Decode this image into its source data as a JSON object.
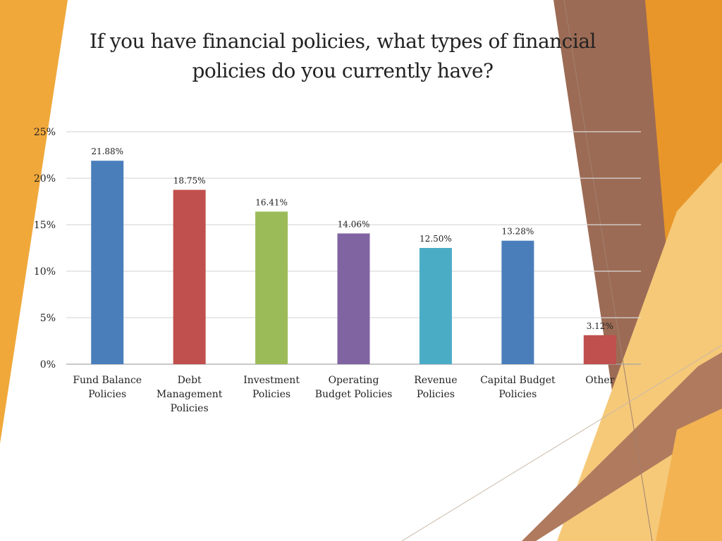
{
  "slide": {
    "title": "If you have financial policies, what types of financial policies do you currently have?"
  },
  "decor": {
    "colors": [
      "#F0A83A",
      "#E8962A",
      "#9C6B55",
      "#B07A5E",
      "#F6C979",
      "#F3B353"
    ]
  },
  "chart_data": {
    "type": "bar",
    "title": "If you have financial policies, what types of financial policies do you currently have?",
    "categories": [
      [
        "Fund Balance",
        "Policies"
      ],
      [
        "Debt",
        "Management",
        "Policies"
      ],
      [
        "Investment",
        "Policies"
      ],
      [
        "Operating",
        "Budget Policies"
      ],
      [
        "Revenue",
        "Policies"
      ],
      [
        "Capital Budget",
        "Policies"
      ],
      [
        "Other"
      ]
    ],
    "values": [
      21.88,
      18.75,
      16.41,
      14.06,
      12.5,
      13.28,
      3.12
    ],
    "value_labels": [
      "21.88%",
      "18.75%",
      "16.41%",
      "14.06%",
      "12.50%",
      "13.28%",
      "3.12%"
    ],
    "colors": [
      "#4A7EBB",
      "#C0504D",
      "#9BBB59",
      "#8064A2",
      "#4BACC6",
      "#4A7EBB",
      "#C0504D"
    ],
    "ylim": [
      0,
      25
    ],
    "yticks": [
      0,
      5,
      10,
      15,
      20,
      25
    ],
    "ytick_labels": [
      "0%",
      "5%",
      "10%",
      "15%",
      "20%",
      "25%"
    ],
    "xlabel": "",
    "ylabel": "",
    "grid": true,
    "legend": "none"
  }
}
